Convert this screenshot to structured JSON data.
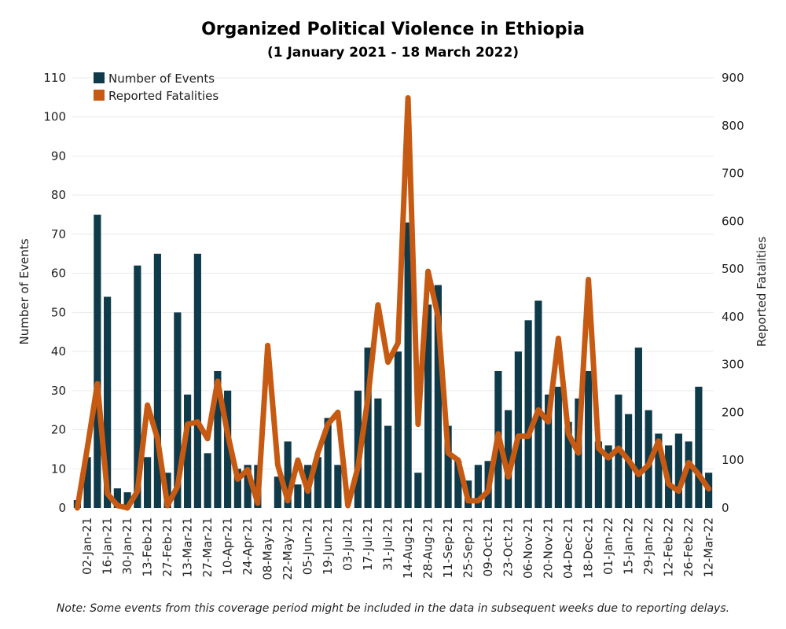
{
  "chart_data": {
    "type": "bar+line",
    "title": "Organized Political Violence in Ethiopia",
    "subtitle": "(1 January 2021 - 18 March 2022)",
    "note": "Note: Some events from this coverage period might be included in the data in subsequent weeks due to reporting delays.",
    "ylabel_left": "Number of Events",
    "ylabel_right": "Reported Fatalities",
    "ylim_left": [
      0,
      110
    ],
    "ylim_right": [
      0,
      900
    ],
    "yticks_left": [
      0,
      10,
      20,
      30,
      40,
      50,
      60,
      70,
      80,
      90,
      100,
      110
    ],
    "yticks_right": [
      0,
      100,
      200,
      300,
      400,
      500,
      600,
      700,
      800,
      900
    ],
    "x": [
      "26-Dec-20",
      "02-Jan-21",
      "09-Jan-21",
      "16-Jan-21",
      "23-Jan-21",
      "30-Jan-21",
      "06-Feb-21",
      "13-Feb-21",
      "20-Feb-21",
      "27-Feb-21",
      "06-Mar-21",
      "13-Mar-21",
      "20-Mar-21",
      "27-Mar-21",
      "03-Apr-21",
      "10-Apr-21",
      "17-Apr-21",
      "24-Apr-21",
      "01-May-21",
      "08-May-21",
      "15-May-21",
      "22-May-21",
      "29-May-21",
      "05-Jun-21",
      "12-Jun-21",
      "19-Jun-21",
      "26-Jun-21",
      "03-Jul-21",
      "10-Jul-21",
      "17-Jul-21",
      "24-Jul-21",
      "31-Jul-21",
      "07-Aug-21",
      "14-Aug-21",
      "21-Aug-21",
      "28-Aug-21",
      "04-Sep-21",
      "11-Sep-21",
      "18-Sep-21",
      "25-Sep-21",
      "02-Oct-21",
      "09-Oct-21",
      "16-Oct-21",
      "23-Oct-21",
      "30-Oct-21",
      "06-Nov-21",
      "13-Nov-21",
      "20-Nov-21",
      "27-Nov-21",
      "04-Dec-21",
      "11-Dec-21",
      "18-Dec-21",
      "25-Dec-21",
      "01-Jan-22",
      "08-Jan-22",
      "15-Jan-22",
      "22-Jan-22",
      "29-Jan-22",
      "05-Feb-22",
      "12-Feb-22",
      "19-Feb-22",
      "26-Feb-22",
      "05-Mar-22",
      "12-Mar-22"
    ],
    "xtick_labels": [
      "02-Jan-21",
      "16-Jan-21",
      "30-Jan-21",
      "13-Feb-21",
      "27-Feb-21",
      "13-Mar-21",
      "27-Mar-21",
      "10-Apr-21",
      "24-Apr-21",
      "08-May-21",
      "22-May-21",
      "05-Jun-21",
      "19-Jun-21",
      "03-Jul-21",
      "17-Jul-21",
      "31-Jul-21",
      "14-Aug-21",
      "28-Aug-21",
      "11-Sep-21",
      "25-Sep-21",
      "09-Oct-21",
      "23-Oct-21",
      "06-Nov-21",
      "20-Nov-21",
      "04-Dec-21",
      "18-Dec-21",
      "01-Jan-22",
      "15-Jan-22",
      "29-Jan-22",
      "12-Feb-22",
      "26-Feb-22",
      "12-Mar-22"
    ],
    "series": [
      {
        "name": "Number of Events",
        "type": "bar",
        "axis": "left",
        "color": "#0f3a4a",
        "values": [
          2,
          13,
          75,
          54,
          5,
          4,
          62,
          13,
          65,
          9,
          50,
          29,
          65,
          14,
          35,
          30,
          10,
          11,
          11,
          0,
          8,
          17,
          6,
          11,
          13,
          23,
          11,
          0,
          30,
          41,
          28,
          21,
          40,
          73,
          9,
          52,
          57,
          21,
          12,
          7,
          11,
          12,
          35,
          25,
          40,
          48,
          53,
          29,
          31,
          22,
          28,
          35,
          17,
          16,
          29,
          24,
          41,
          25,
          19,
          16,
          19,
          17,
          31,
          9
        ]
      },
      {
        "name": "Reported Fatalities",
        "type": "line",
        "axis": "right",
        "color": "#c65a12",
        "values": [
          0,
          125,
          260,
          30,
          5,
          0,
          35,
          215,
          145,
          5,
          45,
          175,
          180,
          145,
          265,
          155,
          60,
          80,
          10,
          340,
          90,
          15,
          100,
          35,
          115,
          175,
          200,
          5,
          85,
          230,
          425,
          305,
          345,
          858,
          175,
          495,
          400,
          115,
          100,
          15,
          15,
          35,
          155,
          65,
          150,
          150,
          205,
          180,
          355,
          155,
          115,
          478,
          125,
          105,
          125,
          100,
          70,
          90,
          140,
          50,
          35,
          95,
          70,
          40
        ]
      }
    ],
    "legend": {
      "placement": "top-left",
      "entries": [
        "Number of Events",
        "Reported Fatalities"
      ]
    },
    "grid": true
  }
}
